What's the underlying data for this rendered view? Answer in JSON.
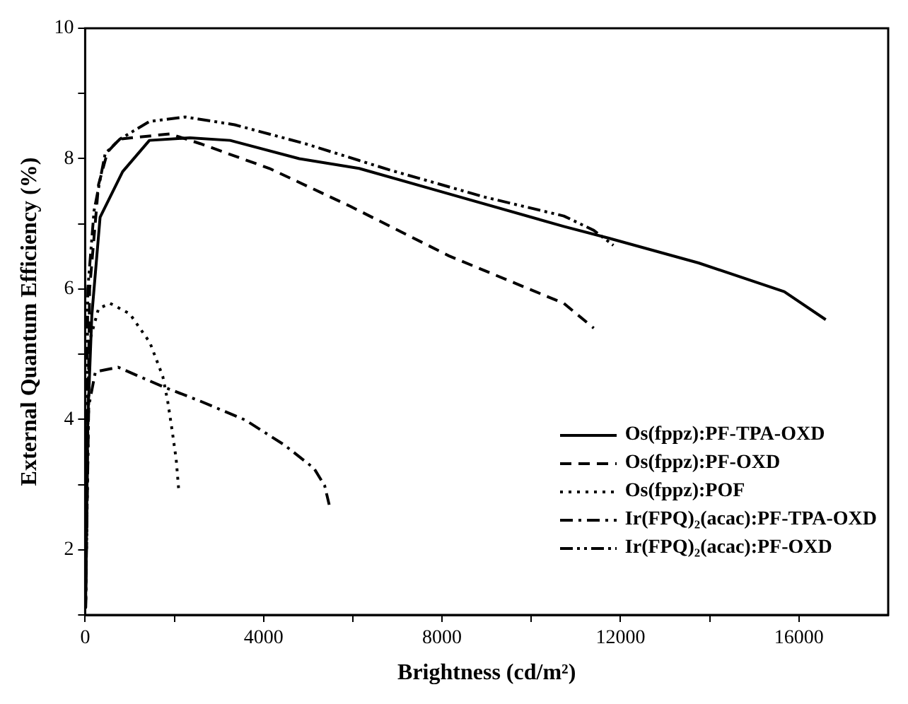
{
  "chart_data": {
    "type": "line",
    "xlabel": "Brightness (cd/m²)",
    "ylabel": "External Quantum Efficiency (%)",
    "xlim": [
      0,
      18000
    ],
    "ylim": [
      1,
      10
    ],
    "xticks": [
      0,
      {
        "value": 2000,
        "label": null
      },
      4000,
      {
        "value": 6000,
        "label": null
      },
      8000,
      {
        "value": 10000,
        "label": null
      },
      12000,
      {
        "value": 14000,
        "label": null
      },
      16000
    ],
    "yticks": [
      {
        "value": 1,
        "label": null
      },
      2,
      {
        "value": 3,
        "label": null
      },
      4,
      {
        "value": 5,
        "label": null
      },
      6,
      {
        "value": 7,
        "label": null
      },
      8,
      {
        "value": 9,
        "label": null
      },
      10
    ],
    "grid": false,
    "legend": "bottom right",
    "marker": "none",
    "series": [
      {
        "name": "Os(fppz):PF-TPA-OXD",
        "color": "#000000",
        "line_style": "solid",
        "x": [
          10,
          60,
          150,
          335,
          840,
          1440,
          2350,
          3250,
          4800,
          6140,
          7950,
          10730,
          11740,
          13750,
          15670,
          16600
        ],
        "values": [
          1.1,
          4.0,
          5.6,
          7.1,
          7.8,
          8.28,
          8.32,
          8.28,
          8.0,
          7.85,
          7.5,
          6.96,
          6.78,
          6.4,
          5.96,
          5.53
        ]
      },
      {
        "name": "Os(fppz):PF-OXD",
        "color": "#000000",
        "line_style": "dashed",
        "x": [
          10,
          100,
          300,
          500,
          770,
          1900,
          2580,
          4130,
          5940,
          8150,
          10730,
          11400
        ],
        "values": [
          1.1,
          6.0,
          7.6,
          8.1,
          8.3,
          8.38,
          8.23,
          7.85,
          7.27,
          6.51,
          5.78,
          5.4
        ]
      },
      {
        "name": "Os(fppz):POF",
        "color": "#000000",
        "line_style": "dotted",
        "x": [
          10,
          100,
          300,
          560,
          1000,
          1450,
          1740,
          1850,
          1950,
          2040,
          2100
        ],
        "values": [
          1.1,
          5.2,
          5.7,
          5.78,
          5.62,
          5.18,
          4.66,
          4.28,
          3.83,
          3.39,
          2.9
        ]
      },
      {
        "name": "Ir(FPQ)₂(acac):PF-TPA-OXD",
        "color": "#000000",
        "line_style": "dashdot",
        "x": [
          10,
          80,
          230,
          740,
          1750,
          2580,
          3590,
          4460,
          5130,
          5370,
          5470
        ],
        "values": [
          1.1,
          4.2,
          4.73,
          4.8,
          4.5,
          4.28,
          3.99,
          3.61,
          3.25,
          2.98,
          2.69
        ]
      },
      {
        "name": "Ir(FPQ)₂(acac):PF-OXD",
        "color": "#000000",
        "line_style": "dashdotdot",
        "x": [
          10,
          60,
          200,
          450,
          780,
          1440,
          2240,
          3350,
          4930,
          6810,
          8960,
          10730,
          11400,
          11840
        ],
        "values": [
          1.1,
          6.0,
          7.2,
          8.08,
          8.3,
          8.57,
          8.64,
          8.52,
          8.23,
          7.83,
          7.41,
          7.12,
          6.9,
          6.67
        ]
      }
    ]
  }
}
